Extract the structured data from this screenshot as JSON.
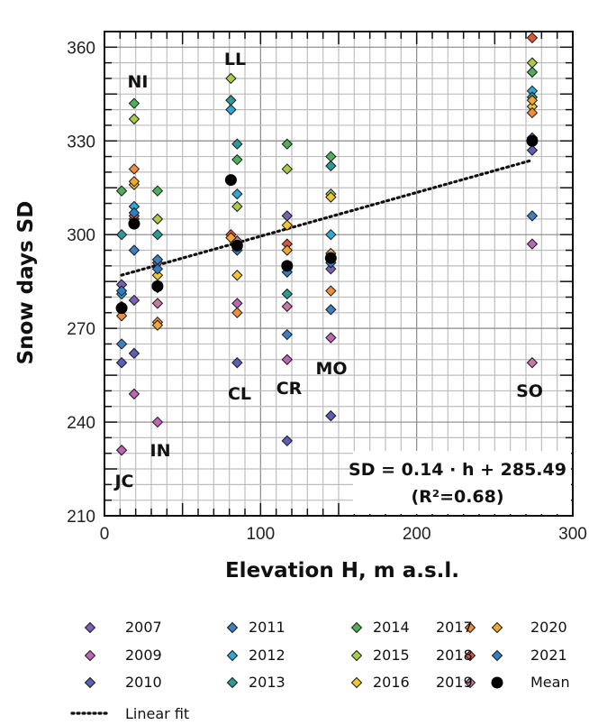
{
  "chart_data": {
    "type": "scatter",
    "xlabel": "Elevation H, m a.s.l.",
    "ylabel": "Snow days  SD",
    "xlim": [
      0,
      300
    ],
    "ylim": [
      210,
      365
    ],
    "x_ticks": [
      0,
      100,
      200,
      300
    ],
    "y_ticks": [
      210,
      240,
      270,
      300,
      330,
      360
    ],
    "grid": true,
    "x_grid_step": 10,
    "y_grid_step": 5,
    "sites": [
      {
        "label": "JC",
        "x": 11
      },
      {
        "label": "NI",
        "x": 19
      },
      {
        "label": "IN",
        "x": 34
      },
      {
        "label": "LL",
        "x": 81
      },
      {
        "label": "CL",
        "x": 85
      },
      {
        "label": "CR",
        "x": 117
      },
      {
        "label": "MO",
        "x": 145
      },
      {
        "label": "SO",
        "x": 274
      }
    ],
    "series": [
      {
        "name": "2007",
        "color": "#7b5fb3",
        "points": [
          [
            11,
            284
          ],
          [
            19,
            279
          ],
          [
            34,
            291
          ],
          [
            117,
            306
          ],
          [
            145,
            289
          ]
        ]
      },
      {
        "name": "2009",
        "color": "#c064b8",
        "points": [
          [
            11,
            231
          ],
          [
            19,
            249
          ],
          [
            34,
            240
          ],
          [
            85,
            278
          ],
          [
            117,
            260
          ],
          [
            145,
            267
          ],
          [
            274,
            297
          ]
        ]
      },
      {
        "name": "2010",
        "color": "#5b5fb8",
        "points": [
          [
            11,
            259
          ],
          [
            19,
            262
          ],
          [
            85,
            259
          ],
          [
            117,
            234
          ],
          [
            145,
            242
          ],
          [
            274,
            327
          ]
        ]
      },
      {
        "name": "2011",
        "color": "#3f7fbf",
        "points": [
          [
            11,
            265
          ],
          [
            19,
            295
          ],
          [
            34,
            292
          ],
          [
            117,
            268
          ],
          [
            145,
            276
          ],
          [
            274,
            306
          ]
        ]
      },
      {
        "name": "2012",
        "color": "#2ea8d8",
        "points": [
          [
            11,
            281
          ],
          [
            19,
            309
          ],
          [
            81,
            340
          ],
          [
            85,
            313
          ],
          [
            145,
            300
          ],
          [
            274,
            346
          ]
        ]
      },
      {
        "name": "2013",
        "color": "#2e9a98",
        "points": [
          [
            11,
            300
          ],
          [
            19,
            305
          ],
          [
            34,
            300
          ],
          [
            81,
            343
          ],
          [
            85,
            329
          ],
          [
            117,
            281
          ],
          [
            145,
            322
          ],
          [
            274,
            344
          ]
        ]
      },
      {
        "name": "2014",
        "color": "#4fae5a",
        "points": [
          [
            11,
            314
          ],
          [
            19,
            342
          ],
          [
            34,
            314
          ],
          [
            85,
            324
          ],
          [
            117,
            329
          ],
          [
            145,
            325
          ],
          [
            274,
            352
          ]
        ]
      },
      {
        "name": "2015",
        "color": "#a8cc4a",
        "points": [
          [
            19,
            337
          ],
          [
            34,
            305
          ],
          [
            81,
            350
          ],
          [
            85,
            309
          ],
          [
            117,
            321
          ],
          [
            145,
            313
          ],
          [
            274,
            355
          ]
        ]
      },
      {
        "name": "2016",
        "color": "#f2c62e",
        "points": [
          [
            11,
            277
          ],
          [
            19,
            316
          ],
          [
            34,
            287
          ],
          [
            85,
            287
          ],
          [
            117,
            303
          ],
          [
            145,
            312
          ],
          [
            274,
            341
          ]
        ]
      },
      {
        "name": "2017",
        "color": "#f08c3a",
        "points": [
          [
            11,
            274
          ],
          [
            19,
            321
          ],
          [
            34,
            272
          ],
          [
            85,
            275
          ],
          [
            117,
            290
          ],
          [
            145,
            282
          ],
          [
            274,
            339
          ]
        ]
      },
      {
        "name": "2018",
        "color": "#e0553a",
        "points": [
          [
            19,
            306
          ],
          [
            34,
            283
          ],
          [
            81,
            300
          ],
          [
            117,
            297
          ],
          [
            274,
            363
          ]
        ]
      },
      {
        "name": "2019",
        "color": "#c878a8",
        "points": [
          [
            34,
            278
          ],
          [
            85,
            298
          ],
          [
            117,
            277
          ],
          [
            274,
            259
          ]
        ]
      },
      {
        "name": "2020",
        "color": "#f0a830",
        "points": [
          [
            19,
            317
          ],
          [
            34,
            271
          ],
          [
            81,
            299
          ],
          [
            85,
            296
          ],
          [
            117,
            295
          ],
          [
            145,
            294
          ],
          [
            274,
            343
          ]
        ]
      },
      {
        "name": "2021",
        "color": "#2e7fc8",
        "points": [
          [
            11,
            282
          ],
          [
            19,
            307
          ],
          [
            34,
            289
          ],
          [
            85,
            295
          ],
          [
            117,
            288
          ],
          [
            145,
            291
          ],
          [
            274,
            331
          ]
        ]
      }
    ],
    "mean": {
      "name": "Mean",
      "color": "#000000",
      "points": [
        [
          11,
          276.5
        ],
        [
          19,
          303.5
        ],
        [
          34,
          283.5
        ],
        [
          81,
          317.5
        ],
        [
          85,
          296.5
        ],
        [
          117,
          290
        ],
        [
          145,
          292.5
        ],
        [
          274,
          330
        ]
      ]
    },
    "linear_fit": {
      "name": "Linear fit",
      "slope": 0.14,
      "intercept": 285.49,
      "x_range": [
        11,
        274
      ]
    },
    "annotation": {
      "equation": "SD = 0.14 · h + 285.49",
      "r2": "(R²=0.68)"
    },
    "legend_position": "bottom"
  }
}
